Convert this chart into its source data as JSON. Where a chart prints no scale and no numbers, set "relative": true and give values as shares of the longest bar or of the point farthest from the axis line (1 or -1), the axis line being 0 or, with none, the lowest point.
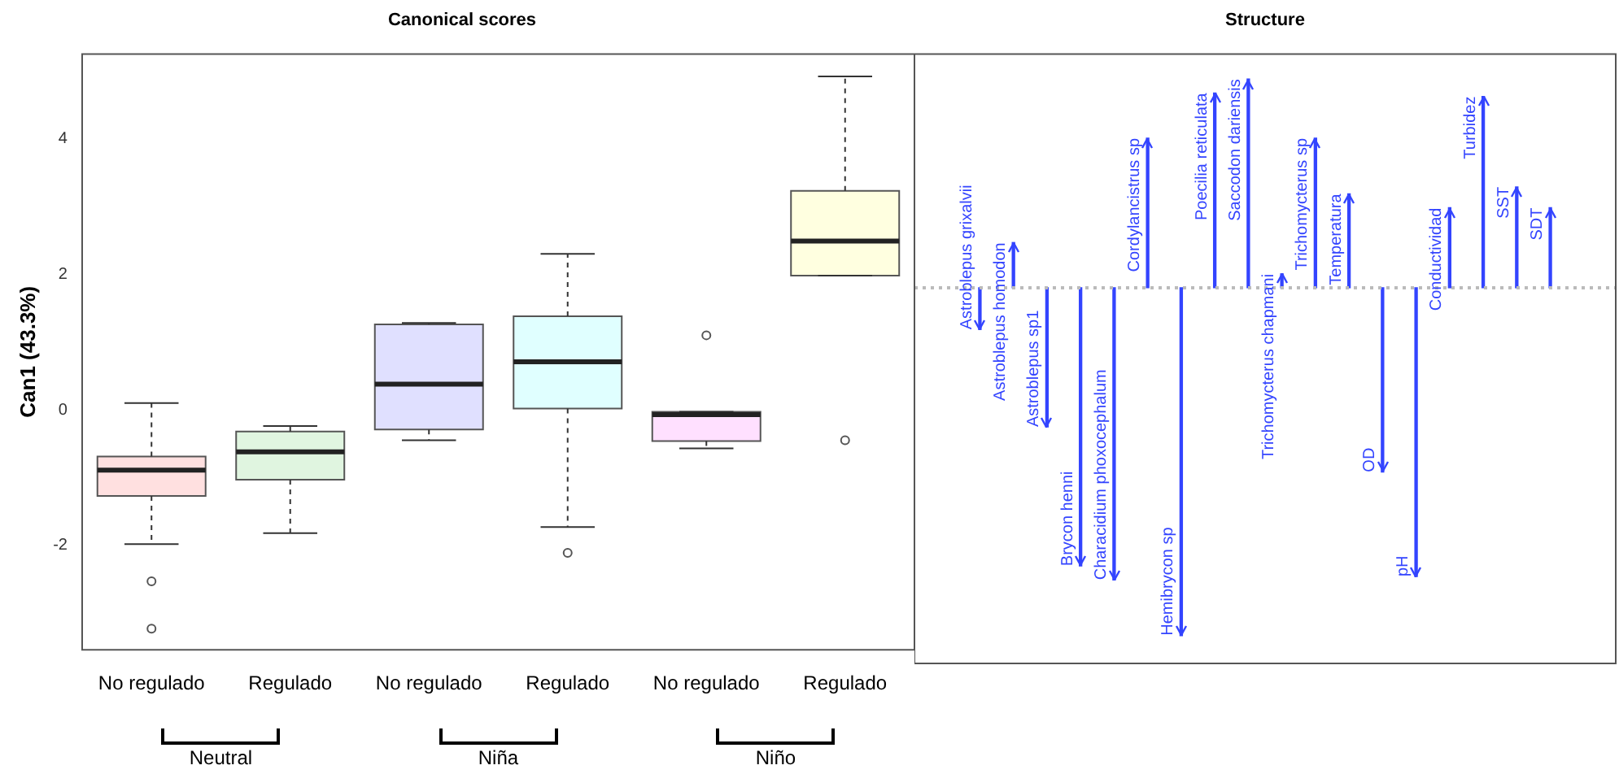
{
  "chart_data": [
    {
      "type": "box",
      "title": "Canonical scores",
      "ylabel": "Can1 (43.3%)",
      "categories": [
        "No regulado",
        "Regulado",
        "No regulado",
        "Regulado",
        "No regulado",
        "Regulado"
      ],
      "colors": [
        "#ffe0e0",
        "#e0f5e0",
        "#e0e0ff",
        "#e0ffff",
        "#ffe0ff",
        "#ffffe0"
      ],
      "boxes": [
        {
          "low": -1.98,
          "q1": -1.27,
          "median": -0.89,
          "q3": -0.69,
          "high": 0.1,
          "outliers": [
            -2.53,
            -3.23
          ]
        },
        {
          "low": -1.82,
          "q1": -1.03,
          "median": -0.62,
          "q3": -0.32,
          "high": -0.24
        },
        {
          "low": -0.45,
          "q1": -0.29,
          "median": 0.38,
          "q3": 1.26,
          "high": 1.28
        },
        {
          "low": -1.73,
          "q1": 0.02,
          "median": 0.71,
          "q3": 1.38,
          "high": 2.3,
          "outliers": [
            -2.11
          ]
        },
        {
          "low": -0.57,
          "q1": -0.46,
          "median": -0.07,
          "q3": -0.03,
          "high": -0.03,
          "outliers": [
            1.1
          ]
        },
        {
          "low": 1.98,
          "q1": 1.98,
          "median": 2.49,
          "q3": 3.23,
          "high": 4.92,
          "outliers": [
            -0.45
          ]
        }
      ],
      "ylim": [
        -3.54,
        5.25
      ],
      "yticks": [
        -2,
        0,
        2,
        4
      ],
      "annotations": [
        "Neutral",
        "Niña",
        "Niño"
      ],
      "grid": false,
      "legend": false
    },
    {
      "type": "bar",
      "title": "Structure",
      "relative": true,
      "color": "#3344ff",
      "categories": [
        "Astroblepus grixalvii",
        "Astroblepus homodon",
        "Astroblepus sp1",
        "Brycon henni",
        "Characidium phoxocephalum",
        "Cordylancistrus sp",
        "Hemibrycon sp",
        "Poecilia reticulata",
        "Saccodon dariensis",
        "Trichomycterus chapmani",
        "Trichomycterus sp",
        "Temperatura",
        "OD",
        "pH",
        "Conductividad",
        "Turbidez",
        "SST",
        "SDT"
      ],
      "values": [
        -0.12,
        0.13,
        -0.4,
        -0.8,
        -0.84,
        0.43,
        -1,
        0.56,
        0.6,
        0.04,
        0.43,
        0.27,
        -0.53,
        -0.83,
        0.23,
        0.55,
        0.29,
        0.23
      ],
      "ref_lines": [
        {
          "axis": "y",
          "value": 0,
          "color": "#bbbbbb",
          "line_style": "dotted"
        }
      ],
      "grid": false,
      "legend": false
    }
  ]
}
